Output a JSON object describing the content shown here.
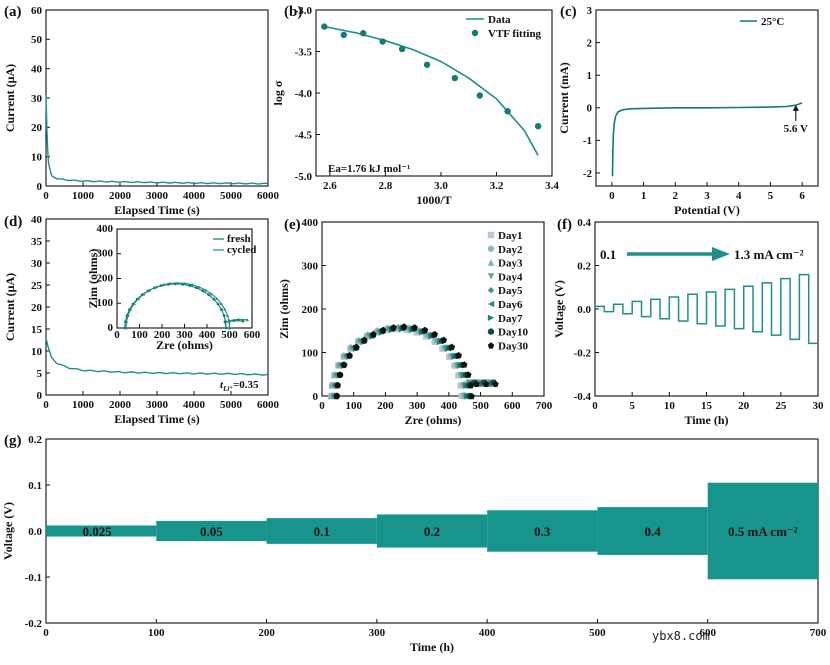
{
  "figure": {
    "colors": {
      "teal": "#1f8f8a",
      "teal_dark": "#147a74",
      "fill_g": "#17958d",
      "black": "#111111"
    },
    "watermark": "ybx8.com"
  },
  "chart_data": [
    {
      "panel": "(a)",
      "type": "line",
      "xlabel": "Elapsed Time (s)",
      "ylabel": "Current (μA)",
      "xlim": [
        0,
        6000
      ],
      "ylim": [
        0,
        60
      ],
      "xticks": [
        0,
        1000,
        2000,
        3000,
        4000,
        5000,
        6000
      ],
      "yticks": [
        0,
        10,
        20,
        30,
        40,
        50,
        60
      ],
      "series": [
        {
          "name": "current",
          "x": [
            0,
            20,
            60,
            150,
            300,
            600,
            1000,
            2000,
            3000,
            4000,
            5000,
            6000
          ],
          "y": [
            31,
            20,
            8,
            3.5,
            2.5,
            2.0,
            1.7,
            1.4,
            1.2,
            1.0,
            0.9,
            0.8
          ]
        }
      ]
    },
    {
      "panel": "(b)",
      "type": "scatter",
      "xlabel": "1000/T",
      "ylabel": "log σ",
      "xlim": [
        2.55,
        3.4
      ],
      "ylim": [
        -5.0,
        -3.0
      ],
      "xticks": [
        2.6,
        2.8,
        3.0,
        3.2,
        3.4
      ],
      "xtick_labels": [
        "2.6",
        "2.8",
        "3.0",
        "3.2",
        "3.4"
      ],
      "yticks": [
        -5.0,
        -4.5,
        -4.0,
        -3.5,
        -3.0
      ],
      "ytick_labels": [
        "-5.0",
        "-4.5",
        "-4.0",
        "-3.5",
        "-3.0"
      ],
      "legend": [
        "Data",
        "VTF fitting"
      ],
      "annotation": "Ea=1.76 kJ mol⁻¹",
      "points": {
        "x": [
          2.58,
          2.65,
          2.72,
          2.79,
          2.86,
          2.95,
          3.05,
          3.14,
          3.24,
          3.35
        ],
        "y": [
          -3.2,
          -3.3,
          -3.28,
          -3.38,
          -3.47,
          -3.66,
          -3.82,
          -4.03,
          -4.22,
          -4.4
        ]
      },
      "fit": {
        "x": [
          2.58,
          2.7,
          2.8,
          2.9,
          3.0,
          3.1,
          3.2,
          3.3,
          3.35
        ],
        "y": [
          -3.2,
          -3.28,
          -3.37,
          -3.48,
          -3.62,
          -3.82,
          -4.07,
          -4.45,
          -4.75
        ]
      }
    },
    {
      "panel": "(c)",
      "type": "line",
      "xlabel": "Potential (V)",
      "ylabel": "Current (mA)",
      "xlim": [
        -0.5,
        6.5
      ],
      "ylim": [
        -2.4,
        3.0
      ],
      "xticks": [
        0,
        1,
        2,
        3,
        4,
        5,
        6
      ],
      "yticks": [
        -2,
        -1,
        0,
        1,
        2,
        3
      ],
      "legend": [
        "25°C"
      ],
      "annotation": "5.6 V",
      "series": [
        {
          "name": "25°C",
          "x": [
            0.02,
            0.03,
            0.05,
            0.08,
            0.12,
            0.2,
            0.35,
            0.6,
            1.0,
            2.0,
            3.0,
            4.0,
            5.0,
            5.5,
            5.8,
            6.0
          ],
          "y": [
            -2.1,
            -1.4,
            -0.8,
            -0.45,
            -0.25,
            -0.12,
            -0.06,
            -0.03,
            -0.02,
            0.0,
            0.0,
            0.01,
            0.02,
            0.04,
            0.08,
            0.15
          ]
        }
      ]
    },
    {
      "panel": "(d)",
      "type": "line",
      "xlabel": "Elapsed Time (s)",
      "ylabel": "Current (μA)",
      "xlim": [
        0,
        6000
      ],
      "ylim": [
        0,
        40
      ],
      "xticks": [
        0,
        1000,
        2000,
        3000,
        4000,
        5000,
        6000
      ],
      "yticks": [
        0,
        5,
        10,
        15,
        20,
        25,
        30,
        35,
        40
      ],
      "annotation_t": "t",
      "annotation_sub": "Li⁺",
      "annotation_val": "=0.35",
      "series": [
        {
          "name": "current",
          "x": [
            0,
            50,
            150,
            300,
            600,
            1000,
            2000,
            3000,
            4000,
            5000,
            6000
          ],
          "y": [
            13,
            11,
            8.5,
            7.2,
            6.2,
            5.6,
            5.2,
            5.0,
            4.9,
            4.8,
            4.6
          ]
        }
      ],
      "inset": {
        "xlabel": "Zre (ohms)",
        "ylabel": "Zim (ohms)",
        "xlim": [
          0,
          600
        ],
        "ylim": [
          0,
          400
        ],
        "xticks": [
          0,
          100,
          200,
          300,
          400,
          500,
          600
        ],
        "yticks": [
          0,
          100,
          200,
          300,
          400
        ],
        "legend": [
          "fresh",
          "cycled"
        ]
      }
    },
    {
      "panel": "(e)",
      "type": "scatter",
      "xlabel": "Zre (ohms)",
      "ylabel": "Zim (ohms)",
      "xlim": [
        0,
        700
      ],
      "ylim": [
        0,
        400
      ],
      "xticks": [
        0,
        100,
        200,
        300,
        400,
        500,
        600,
        700
      ],
      "yticks": [
        0,
        100,
        200,
        300,
        400
      ],
      "legend": [
        "Day1",
        "Day2",
        "Day3",
        "Day4",
        "Day5",
        "Day6",
        "Day7",
        "Day10",
        "Day30"
      ]
    },
    {
      "panel": "(f)",
      "type": "line",
      "xlabel": "Time (h)",
      "ylabel": "Voltage (V)",
      "xlim": [
        0,
        30
      ],
      "ylim": [
        -0.4,
        0.4
      ],
      "xticks": [
        0,
        5,
        10,
        15,
        20,
        25,
        30
      ],
      "yticks": [
        -0.4,
        -0.2,
        0.0,
        0.2,
        0.4
      ],
      "ytick_labels": [
        "-0.4",
        "-0.2",
        "0.0",
        "0.2",
        "0.4"
      ],
      "arrow_start": "0.1",
      "arrow_end": "1.3 mA cm⁻²",
      "steps": {
        "t_start": [
          0,
          2.5,
          5,
          7.5,
          10,
          12.5,
          15,
          17.5,
          20,
          22.5,
          25,
          27.5
        ],
        "amplitude_v": [
          0.012,
          0.022,
          0.035,
          0.045,
          0.055,
          0.068,
          0.078,
          0.09,
          0.105,
          0.12,
          0.14,
          0.158
        ]
      }
    },
    {
      "panel": "(g)",
      "type": "area",
      "xlabel": "Time (h)",
      "ylabel": "Voltage (V)",
      "xlim": [
        0,
        700
      ],
      "ylim": [
        -0.2,
        0.2
      ],
      "xticks": [
        0,
        100,
        200,
        300,
        400,
        500,
        600,
        700
      ],
      "yticks": [
        -0.2,
        -0.1,
        0.0,
        0.1,
        0.2
      ],
      "ytick_labels": [
        "-0.2",
        "-0.1",
        "0.0",
        "0.1",
        "0.2"
      ],
      "segments": [
        {
          "label": "0.025",
          "x0": 0,
          "x1": 100,
          "amp": 0.012
        },
        {
          "label": "0.05",
          "x0": 100,
          "x1": 200,
          "amp": 0.022
        },
        {
          "label": "0.1",
          "x0": 200,
          "x1": 300,
          "amp": 0.028
        },
        {
          "label": "0.2",
          "x0": 300,
          "x1": 400,
          "amp": 0.036
        },
        {
          "label": "0.3",
          "x0": 400,
          "x1": 500,
          "amp": 0.045
        },
        {
          "label": "0.4",
          "x0": 500,
          "x1": 600,
          "amp": 0.052
        },
        {
          "label": "0.5 mA cm⁻²",
          "x0": 600,
          "x1": 700,
          "amp": 0.105
        }
      ]
    }
  ]
}
